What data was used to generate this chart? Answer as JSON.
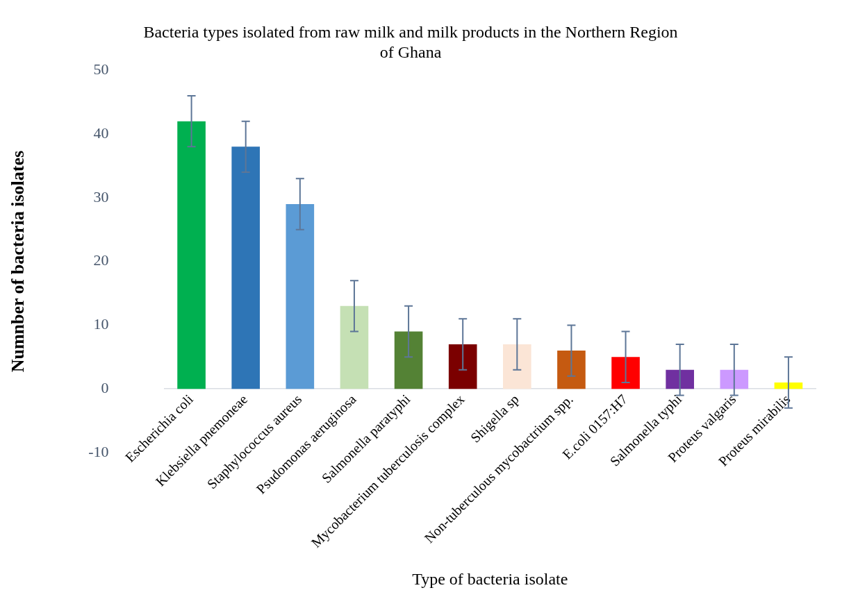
{
  "chart_data": {
    "type": "bar",
    "title": "Bacteria types isolated from raw milk and milk products in the Northern Region of Ghana",
    "xlabel": "Type of bacteria isolate",
    "ylabel": "Numnber of bacteria isolates",
    "categories": [
      "Escherichia coli",
      "Klebsiella pnemoneae",
      "Staphylococcus aureus",
      "Psudomonas aeruginosa",
      "Salmonella paratyphi",
      "Mycobacterium tuberculosis complex",
      "Shigella sp",
      "Non-tuberculous mycobactrium spp.",
      "E.coli 0157:H7",
      "Salmonella typhi",
      "Proteus valgaris",
      "Proteus mirabilis"
    ],
    "values": [
      42,
      38,
      29,
      13,
      9,
      7,
      7,
      6,
      5,
      3,
      3,
      1
    ],
    "colors": [
      "#00b050",
      "#2e75b6",
      "#5b9bd5",
      "#c5e0b4",
      "#548235",
      "#7b0000",
      "#fbe5d6",
      "#c55a11",
      "#ff0000",
      "#7030a0",
      "#cc99ff",
      "#ffff00"
    ],
    "errors": [
      4,
      4,
      4,
      4,
      4,
      4,
      4,
      4,
      4,
      4,
      4,
      4
    ],
    "ylim": [
      -10,
      50
    ],
    "yticks": [
      -10,
      0,
      10,
      20,
      30,
      40,
      50
    ],
    "grid": false,
    "legend": false
  }
}
